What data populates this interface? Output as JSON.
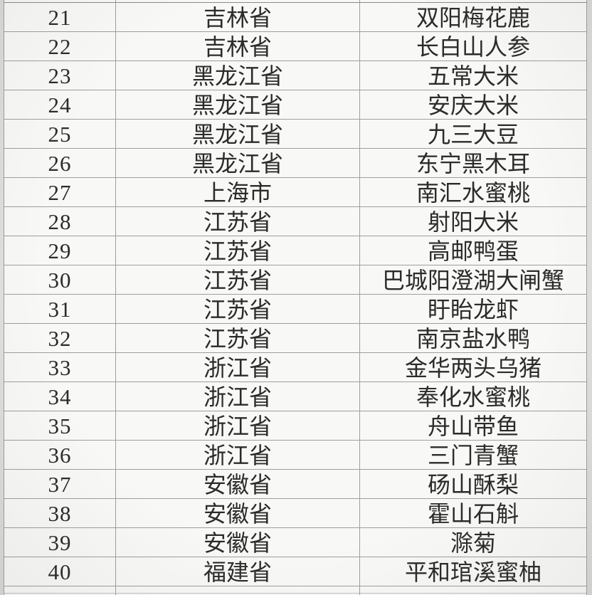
{
  "colors": {
    "page_background": "#dcdcda",
    "cell_background": "#f8f8f6",
    "grid_line": "#9e9e9e",
    "text": "#2b2b2b"
  },
  "table": {
    "rows": [
      {
        "rank": "21",
        "province": "吉林省",
        "product": "双阳梅花鹿"
      },
      {
        "rank": "22",
        "province": "吉林省",
        "product": "长白山人参"
      },
      {
        "rank": "23",
        "province": "黑龙江省",
        "product": "五常大米"
      },
      {
        "rank": "24",
        "province": "黑龙江省",
        "product": "安庆大米"
      },
      {
        "rank": "25",
        "province": "黑龙江省",
        "product": "九三大豆"
      },
      {
        "rank": "26",
        "province": "黑龙江省",
        "product": "东宁黑木耳"
      },
      {
        "rank": "27",
        "province": "上海市",
        "product": "南汇水蜜桃"
      },
      {
        "rank": "28",
        "province": "江苏省",
        "product": "射阳大米"
      },
      {
        "rank": "29",
        "province": "江苏省",
        "product": "高邮鸭蛋"
      },
      {
        "rank": "30",
        "province": "江苏省",
        "product": "巴城阳澄湖大闸蟹"
      },
      {
        "rank": "31",
        "province": "江苏省",
        "product": "盱眙龙虾"
      },
      {
        "rank": "32",
        "province": "江苏省",
        "product": "南京盐水鸭"
      },
      {
        "rank": "33",
        "province": "浙江省",
        "product": "金华两头乌猪"
      },
      {
        "rank": "34",
        "province": "浙江省",
        "product": "奉化水蜜桃"
      },
      {
        "rank": "35",
        "province": "浙江省",
        "product": "舟山带鱼"
      },
      {
        "rank": "36",
        "province": "浙江省",
        "product": "三门青蟹"
      },
      {
        "rank": "37",
        "province": "安徽省",
        "product": "砀山酥梨"
      },
      {
        "rank": "38",
        "province": "安徽省",
        "product": "霍山石斛"
      },
      {
        "rank": "39",
        "province": "安徽省",
        "product": "滁菊"
      },
      {
        "rank": "40",
        "province": "福建省",
        "product": "平和琯溪蜜柚"
      }
    ]
  }
}
